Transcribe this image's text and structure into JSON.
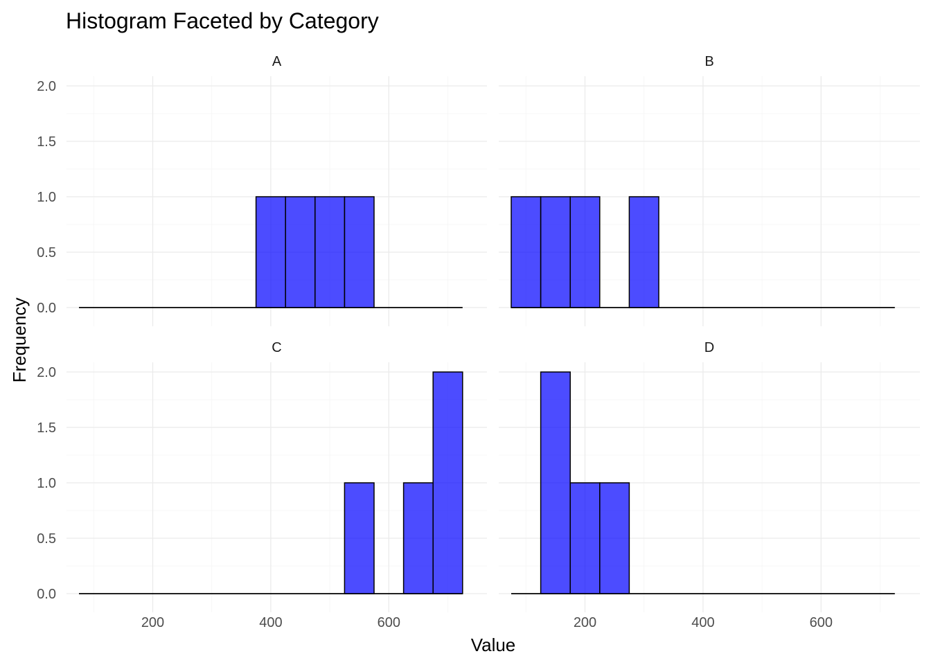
{
  "chart_data": {
    "type": "bar",
    "title": "Histogram Faceted by Category",
    "xlabel": "Value",
    "ylabel": "Frequency",
    "xlim": [
      75,
      725
    ],
    "ylim": [
      0,
      2
    ],
    "x_ticks": [
      200,
      400,
      600
    ],
    "y_ticks": [
      0.0,
      0.5,
      1.0,
      1.5,
      2.0
    ],
    "grid": true,
    "bin_width": 50,
    "bar_color": "#0000ff",
    "bar_alpha": 0.7,
    "bar_outline": "#000000",
    "facets": [
      {
        "label": "A",
        "bins": [
          {
            "x0": 375,
            "x1": 425,
            "count": 1
          },
          {
            "x0": 425,
            "x1": 475,
            "count": 1
          },
          {
            "x0": 475,
            "x1": 525,
            "count": 1
          },
          {
            "x0": 525,
            "x1": 575,
            "count": 1
          }
        ],
        "range": [
          75,
          725
        ]
      },
      {
        "label": "B",
        "bins": [
          {
            "x0": 75,
            "x1": 125,
            "count": 1
          },
          {
            "x0": 125,
            "x1": 175,
            "count": 1
          },
          {
            "x0": 175,
            "x1": 225,
            "count": 1
          },
          {
            "x0": 275,
            "x1": 325,
            "count": 1
          }
        ],
        "range": [
          75,
          725
        ]
      },
      {
        "label": "C",
        "bins": [
          {
            "x0": 525,
            "x1": 575,
            "count": 1
          },
          {
            "x0": 625,
            "x1": 675,
            "count": 1
          },
          {
            "x0": 675,
            "x1": 725,
            "count": 2
          }
        ],
        "range": [
          75,
          725
        ]
      },
      {
        "label": "D",
        "bins": [
          {
            "x0": 125,
            "x1": 175,
            "count": 2
          },
          {
            "x0": 175,
            "x1": 225,
            "count": 1
          },
          {
            "x0": 225,
            "x1": 275,
            "count": 1
          }
        ],
        "range": [
          75,
          725
        ]
      }
    ]
  }
}
